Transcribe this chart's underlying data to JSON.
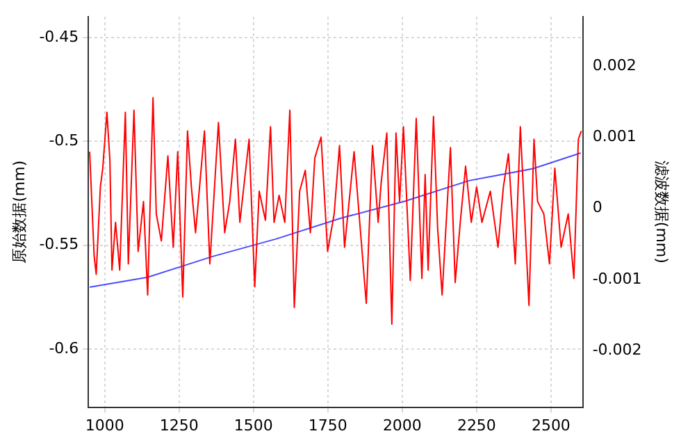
{
  "chart_data": {
    "type": "line",
    "ylabel": "原始数据(mm)",
    "y2label": "滤波数据(mm)",
    "xlim": [
      945,
      2607
    ],
    "xticks": [
      1000,
      1250,
      1500,
      1750,
      2000,
      2250,
      2500
    ],
    "ylim": [
      -0.628,
      -0.44
    ],
    "yticks": [
      -0.45,
      -0.5,
      -0.55,
      -0.6
    ],
    "y2lim": [
      -0.0028,
      0.0027
    ],
    "y2ticks": [
      0.002,
      0.001,
      0,
      -0.001,
      -0.002
    ],
    "grid": true,
    "marker": "none",
    "line_style": "solid",
    "series": [
      {
        "color": "#ff0000",
        "x": [
          949,
          964,
          971,
          985,
          993,
          1007,
          1017,
          1024,
          1036,
          1050,
          1069,
          1079,
          1098,
          1112,
          1130,
          1144,
          1162,
          1173,
          1190,
          1212,
          1230,
          1245,
          1262,
          1278,
          1291,
          1305,
          1335,
          1353,
          1382,
          1403,
          1420,
          1439,
          1454,
          1485,
          1504,
          1519,
          1540,
          1557,
          1569,
          1586,
          1605,
          1622,
          1637,
          1655,
          1674,
          1691,
          1706,
          1727,
          1749,
          1771,
          1789,
          1806,
          1838,
          1857,
          1879,
          1900,
          1919,
          1929,
          1948,
          1965,
          1979,
          1991,
          2004,
          2027,
          2047,
          2066,
          2077,
          2087,
          2105,
          2119,
          2134,
          2162,
          2178,
          2195,
          2213,
          2232,
          2250,
          2268,
          2296,
          2322,
          2340,
          2357,
          2380,
          2397,
          2426,
          2443,
          2455,
          2476,
          2495,
          2513,
          2534,
          2558,
          2577,
          2592,
          2602
        ],
        "values": [
          -0.505,
          -0.555,
          -0.564,
          -0.522,
          -0.513,
          -0.486,
          -0.509,
          -0.562,
          -0.539,
          -0.562,
          -0.486,
          -0.559,
          -0.485,
          -0.553,
          -0.529,
          -0.574,
          -0.479,
          -0.535,
          -0.548,
          -0.507,
          -0.551,
          -0.505,
          -0.575,
          -0.495,
          -0.522,
          -0.544,
          -0.495,
          -0.559,
          -0.491,
          -0.544,
          -0.529,
          -0.499,
          -0.539,
          -0.499,
          -0.57,
          -0.524,
          -0.538,
          -0.493,
          -0.539,
          -0.526,
          -0.539,
          -0.485,
          -0.58,
          -0.524,
          -0.514,
          -0.544,
          -0.508,
          -0.498,
          -0.553,
          -0.535,
          -0.502,
          -0.551,
          -0.505,
          -0.539,
          -0.578,
          -0.502,
          -0.539,
          -0.52,
          -0.496,
          -0.588,
          -0.496,
          -0.529,
          -0.493,
          -0.567,
          -0.489,
          -0.566,
          -0.516,
          -0.562,
          -0.488,
          -0.542,
          -0.574,
          -0.503,
          -0.568,
          -0.539,
          -0.512,
          -0.539,
          -0.522,
          -0.539,
          -0.524,
          -0.551,
          -0.522,
          -0.506,
          -0.559,
          -0.493,
          -0.579,
          -0.499,
          -0.529,
          -0.535,
          -0.559,
          -0.513,
          -0.551,
          -0.535,
          -0.566,
          -0.499,
          -0.495
        ]
      },
      {
        "color": "#4b4bff",
        "axis": "y2",
        "x": [
          949,
          1144,
          1360,
          1576,
          1792,
          2008,
          2224,
          2440,
          2600
        ],
        "values": [
          -0.00111,
          -0.00097,
          -0.00068,
          -0.00043,
          -0.00014,
          0.0001,
          0.00039,
          0.00056,
          0.00078
        ]
      }
    ]
  }
}
